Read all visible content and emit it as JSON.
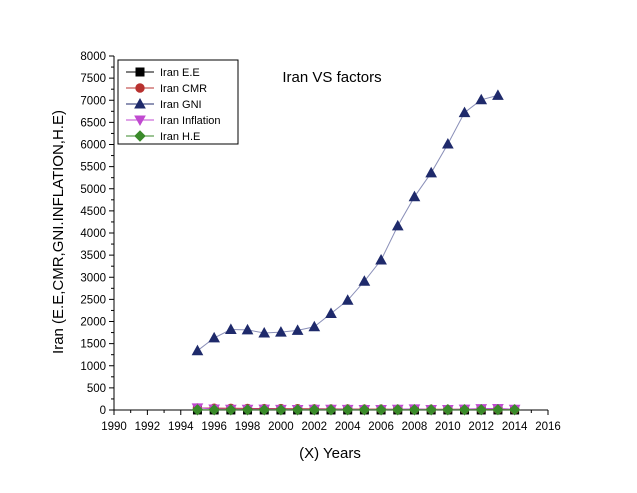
{
  "chart_data": {
    "type": "line",
    "title": "Iran VS factors",
    "xlabel": "(X) Years",
    "ylabel": "Iran (E.E,CMR,GNI.INFLATION,H.E)",
    "xlim": [
      1990,
      2016
    ],
    "ylim": [
      0,
      8000
    ],
    "xticks": [
      1990,
      1992,
      1994,
      1996,
      1998,
      2000,
      2002,
      2004,
      2006,
      2008,
      2010,
      2012,
      2014,
      2016
    ],
    "yticks": [
      0,
      500,
      1000,
      1500,
      2000,
      2500,
      3000,
      3500,
      4000,
      4500,
      5000,
      5500,
      6000,
      6500,
      7000,
      7500,
      8000
    ],
    "legend_position": "top-left",
    "grid": false,
    "series": [
      {
        "name": "Iran E.E",
        "marker": "square",
        "color": "#000000",
        "x": [
          1995,
          1996,
          1997,
          1998,
          1999,
          2000,
          2001,
          2002,
          2003,
          2004,
          2005,
          2006,
          2007,
          2008,
          2009,
          2010,
          2011,
          2012,
          2013,
          2014
        ],
        "values": [
          1,
          1,
          1,
          1,
          1,
          1,
          1,
          1,
          1,
          1,
          1,
          1,
          1,
          1,
          1,
          1,
          1,
          1,
          1,
          1
        ]
      },
      {
        "name": "Iran CMR",
        "marker": "circle",
        "color": "#b8312f",
        "x": [
          1995,
          1996,
          1997,
          1998,
          1999,
          2000,
          2001,
          2002,
          2003,
          2004,
          2005,
          2006,
          2007,
          2008,
          2009,
          2010,
          2011,
          2012,
          2013,
          2014
        ],
        "values": [
          45,
          42,
          39,
          36,
          33,
          31,
          29,
          27,
          25,
          23,
          21,
          20,
          19,
          18,
          17,
          16,
          16,
          15,
          15,
          14
        ]
      },
      {
        "name": "Iran GNI",
        "marker": "triangle-up",
        "color": "#1f2a6b",
        "x": [
          1995,
          1996,
          1997,
          1998,
          1999,
          2000,
          2001,
          2002,
          2003,
          2004,
          2005,
          2006,
          2007,
          2008,
          2009,
          2010,
          2011,
          2012,
          2013
        ],
        "values": [
          1340,
          1630,
          1820,
          1810,
          1740,
          1760,
          1800,
          1880,
          2180,
          2480,
          2910,
          3390,
          4160,
          4820,
          5360,
          6010,
          6720,
          7010,
          7110
        ]
      },
      {
        "name": "Iran Inflation",
        "marker": "triangle-down",
        "color": "#c04ad0",
        "x": [
          1995,
          1996,
          1997,
          1998,
          1999,
          2000,
          2001,
          2002,
          2003,
          2004,
          2005,
          2006,
          2007,
          2008,
          2009,
          2010,
          2011,
          2012,
          2013,
          2014
        ],
        "values": [
          49,
          23,
          17,
          18,
          20,
          15,
          11,
          16,
          16,
          15,
          12,
          12,
          18,
          25,
          11,
          12,
          21,
          31,
          35,
          16
        ]
      },
      {
        "name": "Iran H.E",
        "marker": "diamond",
        "color": "#3a8a2a",
        "x": [
          1995,
          1996,
          1997,
          1998,
          1999,
          2000,
          2001,
          2002,
          2003,
          2004,
          2005,
          2006,
          2007,
          2008,
          2009,
          2010,
          2011,
          2012,
          2013,
          2014
        ],
        "values": [
          5,
          5,
          5,
          5,
          5,
          5,
          5,
          6,
          6,
          6,
          6,
          6,
          6,
          6,
          6,
          6,
          6,
          7,
          7,
          7
        ]
      }
    ]
  }
}
